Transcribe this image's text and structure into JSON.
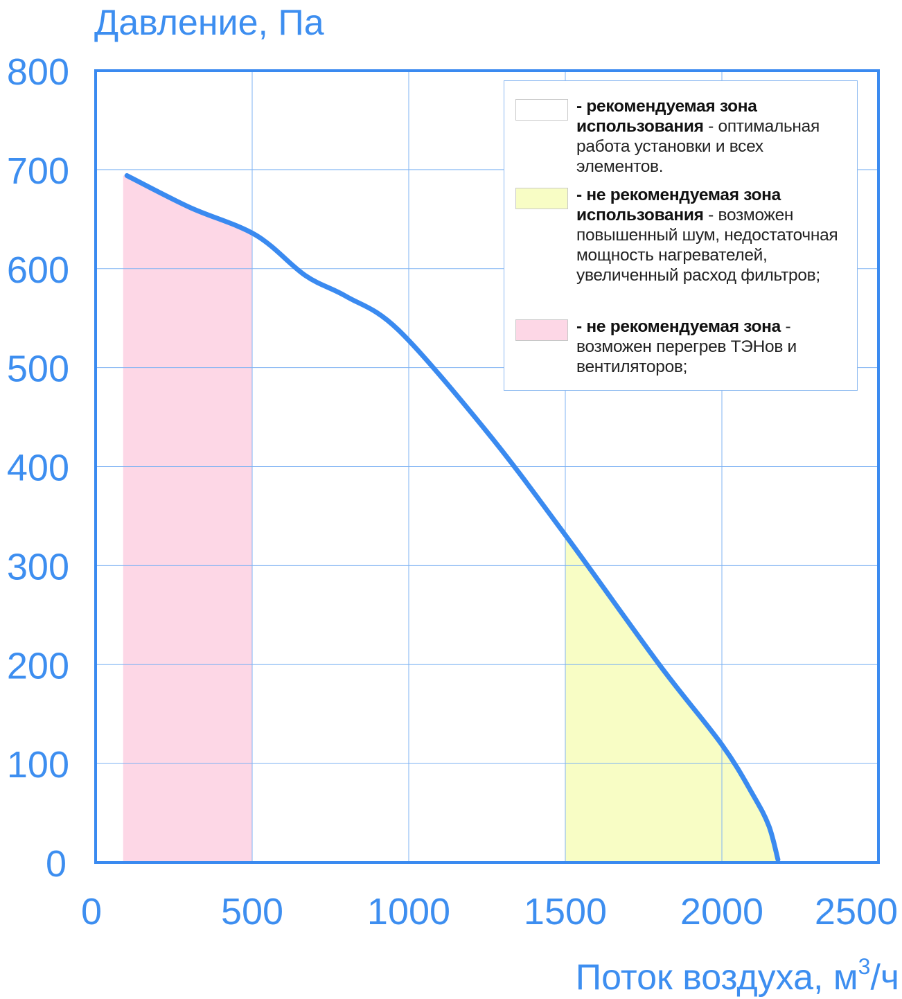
{
  "chart_data": {
    "type": "line",
    "title": "",
    "ylabel": "Давление, Па",
    "xlabel_main": "Поток воздуха, м",
    "xlabel_sup": "3",
    "xlabel_tail": "/ч",
    "xlim": [
      0,
      2500
    ],
    "ylim": [
      0,
      800
    ],
    "grid": true,
    "xticks": [
      0,
      500,
      1000,
      1500,
      2000,
      2500
    ],
    "yticks": [
      0,
      100,
      200,
      300,
      400,
      500,
      600,
      700,
      800
    ],
    "series": [
      {
        "name": "fan-curve",
        "color": "#3a8af0",
        "x": [
          100,
          300,
          511,
          670,
          800,
          967,
          1250,
          1502,
          1800,
          2000,
          2100,
          2150,
          2179
        ],
        "y": [
          694,
          662,
          634,
          593,
          572,
          538,
          435,
          330,
          200,
          119,
          68,
          37,
          3
        ]
      }
    ],
    "zones": [
      {
        "name": "pink-zone",
        "x_from": 88,
        "x_to": 500,
        "color": "#fdd7e6"
      },
      {
        "name": "yellow-zone",
        "x_from": 1500,
        "x_to": 2179,
        "color": "#f8fdc5"
      }
    ],
    "legend": {
      "placement": "top-right",
      "items": [
        {
          "color": "#ffffff",
          "bold": "- рекомендуемая зона использования",
          "text": " - оптимальная работа установки и всех элементов."
        },
        {
          "color": "#f8fdc5",
          "bold": "- не рекомендуемая зона использования",
          "text": " - возможен повышенный шум, недостаточная мощность нагревателей, увеличенный расход фильтров;"
        },
        {
          "color": "#fdd7e6",
          "bold": "- не рекомендуемая зона",
          "text": " - возможен перегрев ТЭНов и вентиляторов;"
        }
      ]
    }
  },
  "colors": {
    "axis": "#3a8af0",
    "grid": "#7fb3f3",
    "label": "#3d8ef0"
  }
}
